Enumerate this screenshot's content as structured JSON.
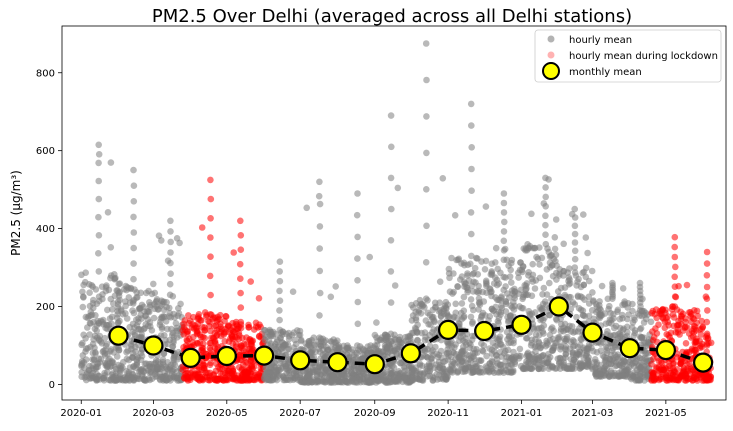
{
  "chart_data": {
    "type": "scatter",
    "title": "PM2.5 Over Delhi (averaged across all Delhi stations)",
    "ylabel": "PM2.5 (μg/m³)",
    "xlabel": "",
    "ylim": [
      -40,
      920
    ],
    "xlim": [
      "2019-12-16",
      "2021-06-20"
    ],
    "yticks": [
      0,
      200,
      400,
      600,
      800
    ],
    "xticks": [
      "2020-01",
      "2020-03",
      "2020-05",
      "2020-07",
      "2020-09",
      "2020-11",
      "2021-01",
      "2021-03",
      "2021-05"
    ],
    "grid": false,
    "legend_position": "top-right",
    "legend": [
      {
        "label": "hourly mean",
        "marker": "circle",
        "color": "#808080"
      },
      {
        "label": "hourly mean during lockdown",
        "marker": "circle",
        "color": "#ff0000"
      },
      {
        "label": "monthly mean",
        "marker": "large-circle",
        "color": "#ffff00"
      }
    ],
    "colors": {
      "hourly": "#808080",
      "lockdown": "#ff0000",
      "monthly_fill": "#ffff00",
      "monthly_edge": "#000000"
    },
    "series": [
      {
        "name": "monthly mean",
        "style": "dashed-line-with-markers",
        "points": [
          {
            "x": "2020-02-01",
            "y": 125
          },
          {
            "x": "2020-03-01",
            "y": 100
          },
          {
            "x": "2020-04-01",
            "y": 68
          },
          {
            "x": "2020-05-01",
            "y": 73
          },
          {
            "x": "2020-06-01",
            "y": 74
          },
          {
            "x": "2020-07-01",
            "y": 62
          },
          {
            "x": "2020-08-01",
            "y": 57
          },
          {
            "x": "2020-09-01",
            "y": 52
          },
          {
            "x": "2020-10-01",
            "y": 80
          },
          {
            "x": "2020-11-01",
            "y": 140
          },
          {
            "x": "2020-12-01",
            "y": 137
          },
          {
            "x": "2021-01-01",
            "y": 153
          },
          {
            "x": "2021-02-01",
            "y": 200
          },
          {
            "x": "2021-03-01",
            "y": 133
          },
          {
            "x": "2021-04-01",
            "y": 93
          },
          {
            "x": "2021-05-01",
            "y": 88
          },
          {
            "x": "2021-06-01",
            "y": 56
          }
        ]
      }
    ],
    "hourly_envelope": [
      {
        "start": "2020-01-01",
        "end": "2020-01-31",
        "low": 10,
        "high": 290,
        "peak": 615,
        "lockdown": false
      },
      {
        "start": "2020-02-01",
        "end": "2020-02-29",
        "low": 10,
        "high": 270,
        "peak": 550,
        "lockdown": false
      },
      {
        "start": "2020-03-01",
        "end": "2020-03-24",
        "low": 10,
        "high": 230,
        "peak": 420,
        "lockdown": false
      },
      {
        "start": "2020-03-25",
        "end": "2020-04-30",
        "low": 10,
        "high": 180,
        "peak": 525,
        "lockdown": true
      },
      {
        "start": "2020-05-01",
        "end": "2020-05-31",
        "low": 10,
        "high": 160,
        "peak": 420,
        "lockdown": true
      },
      {
        "start": "2020-06-01",
        "end": "2020-06-30",
        "low": 10,
        "high": 140,
        "peak": 315,
        "lockdown": false
      },
      {
        "start": "2020-07-01",
        "end": "2020-07-31",
        "low": 5,
        "high": 120,
        "peak": 520,
        "lockdown": false
      },
      {
        "start": "2020-08-01",
        "end": "2020-08-31",
        "low": 5,
        "high": 100,
        "peak": 490,
        "lockdown": false
      },
      {
        "start": "2020-09-01",
        "end": "2020-09-30",
        "low": 5,
        "high": 130,
        "peak": 690,
        "lockdown": false
      },
      {
        "start": "2020-10-01",
        "end": "2020-10-31",
        "low": 10,
        "high": 220,
        "peak": 875,
        "lockdown": false
      },
      {
        "start": "2020-11-01",
        "end": "2020-11-30",
        "low": 30,
        "high": 330,
        "peak": 720,
        "lockdown": false
      },
      {
        "start": "2020-12-01",
        "end": "2020-12-31",
        "low": 30,
        "high": 320,
        "peak": 490,
        "lockdown": false
      },
      {
        "start": "2021-01-01",
        "end": "2021-01-31",
        "low": 40,
        "high": 360,
        "peak": 530,
        "lockdown": false
      },
      {
        "start": "2021-02-01",
        "end": "2021-02-28",
        "low": 40,
        "high": 300,
        "peak": 450,
        "lockdown": false
      },
      {
        "start": "2021-03-01",
        "end": "2021-03-31",
        "low": 20,
        "high": 220,
        "peak": 260,
        "lockdown": false
      },
      {
        "start": "2021-04-01",
        "end": "2021-04-18",
        "low": 10,
        "high": 190,
        "peak": 260,
        "lockdown": false
      },
      {
        "start": "2021-04-19",
        "end": "2021-05-31",
        "low": 10,
        "high": 200,
        "peak": 378,
        "lockdown": true
      },
      {
        "start": "2021-06-01",
        "end": "2021-06-07",
        "low": 10,
        "high": 130,
        "peak": 340,
        "lockdown": true
      }
    ]
  }
}
